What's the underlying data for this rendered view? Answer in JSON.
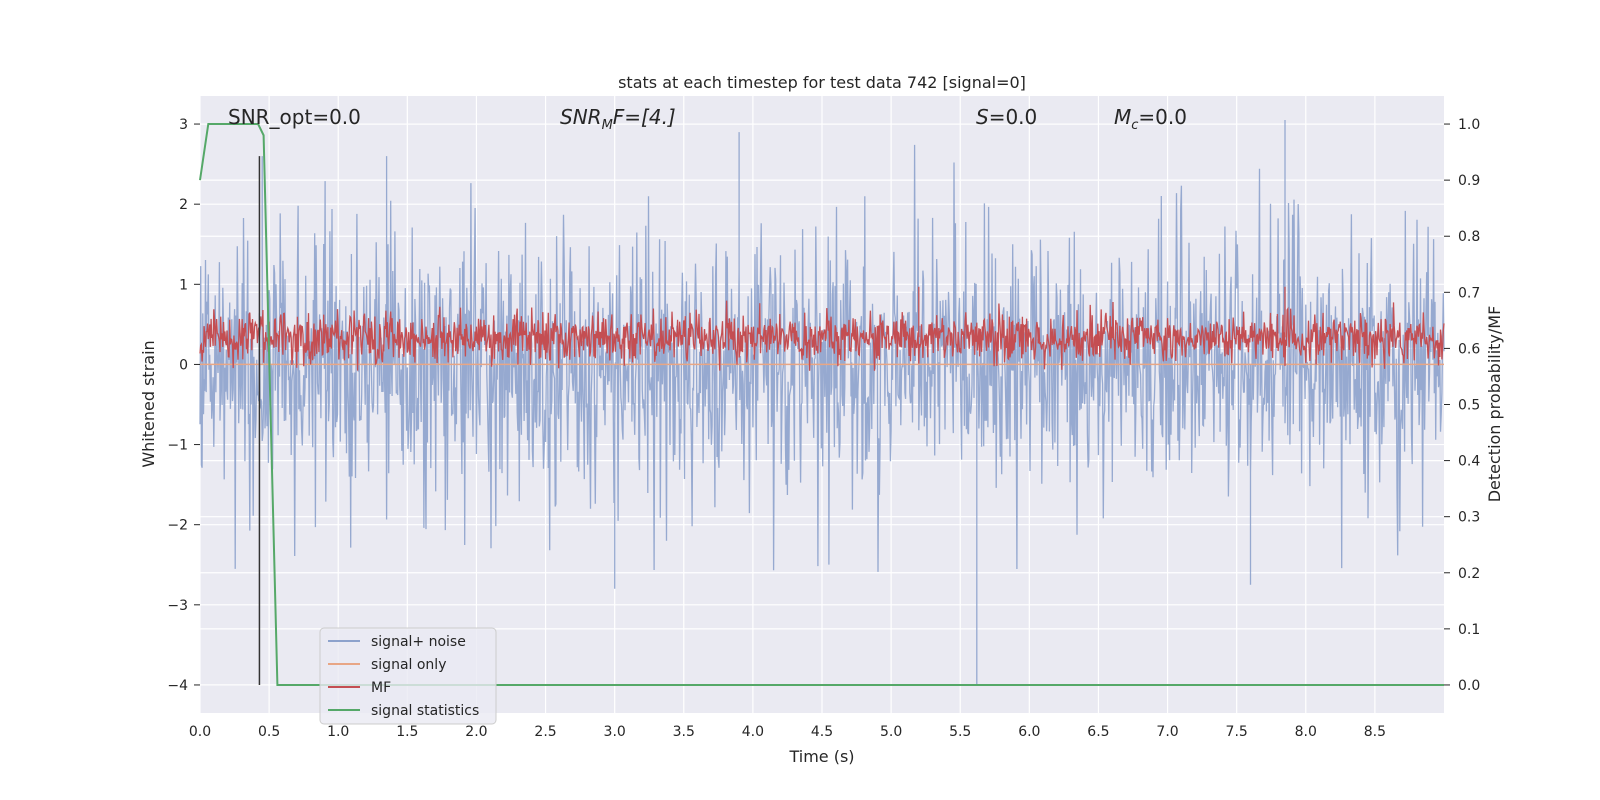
{
  "chart_data": {
    "type": "line",
    "title": "stats at each timestep for test data 742 [signal=0]",
    "xlabel": "Time (s)",
    "ylabel_left": "Whitened strain",
    "ylabel_right": "Detection probability/MF",
    "xlim": [
      0.0,
      9.0
    ],
    "ylim_left": [
      -4.35,
      3.35
    ],
    "ylim_right": [
      -0.05,
      1.05
    ],
    "x_ticks": [
      "0.0",
      "0.5",
      "1.0",
      "1.5",
      "2.0",
      "2.5",
      "3.0",
      "3.5",
      "4.0",
      "4.5",
      "5.0",
      "5.5",
      "6.0",
      "6.5",
      "7.0",
      "7.5",
      "8.0",
      "8.5"
    ],
    "y_ticks_left": [
      "3",
      "2",
      "1",
      "0",
      "−1",
      "−2",
      "−3",
      "−4"
    ],
    "y_ticks_right": [
      "1.0",
      "0.9",
      "0.8",
      "0.7",
      "0.6",
      "0.5",
      "0.4",
      "0.3",
      "0.2",
      "0.1",
      "0.0"
    ],
    "grid": true,
    "legend_position": "lower-left",
    "annotations": {
      "snr_opt": "SNR_opt=0.0",
      "snr_mf_main": "SNR",
      "snr_mf_sub": "M",
      "snr_mf_rest": "F=[4.]",
      "s_main": "S",
      "s_rest": "=0.0",
      "mc_main": "M",
      "mc_sub": "c",
      "mc_rest": "=0.0"
    },
    "series": [
      {
        "name": "signal+ noise",
        "axis": "left",
        "color": "#8da2cc",
        "description_values": "noise band approx. between -2.5 and 2.5, peaks to 3.0 near t=7.85, dip to -4.0 near t=5.6",
        "typical_range": [
          -1.4,
          1.6
        ],
        "notable_points": [
          {
            "x": 0.45,
            "y": 2.6
          },
          {
            "x": 1.35,
            "y": 2.6
          },
          {
            "x": 3.9,
            "y": 2.9
          },
          {
            "x": 5.62,
            "y": -4.0
          },
          {
            "x": 7.85,
            "y": 3.05
          },
          {
            "x": 3.0,
            "y": -2.8
          },
          {
            "x": 7.6,
            "y": -2.75
          }
        ]
      },
      {
        "name": "signal only",
        "axis": "left",
        "color": "#e8a685",
        "values_constant": 0.0
      },
      {
        "name": "MF",
        "axis": "right",
        "color": "#c44e52",
        "typical_range": [
          0.56,
          0.7
        ],
        "notable_points": [
          {
            "x": 5.2,
            "y": 0.71
          },
          {
            "x": 7.85,
            "y": 0.71
          }
        ]
      },
      {
        "name": "signal statistics",
        "axis": "right",
        "color": "#55a868",
        "x": [
          0.0,
          0.06,
          0.42,
          0.46,
          0.56,
          9.0
        ],
        "y": [
          0.9,
          1.0,
          1.0,
          0.98,
          0.0,
          0.0
        ]
      }
    ],
    "vertical_marker": {
      "x": 0.43,
      "color": "#333333"
    }
  }
}
